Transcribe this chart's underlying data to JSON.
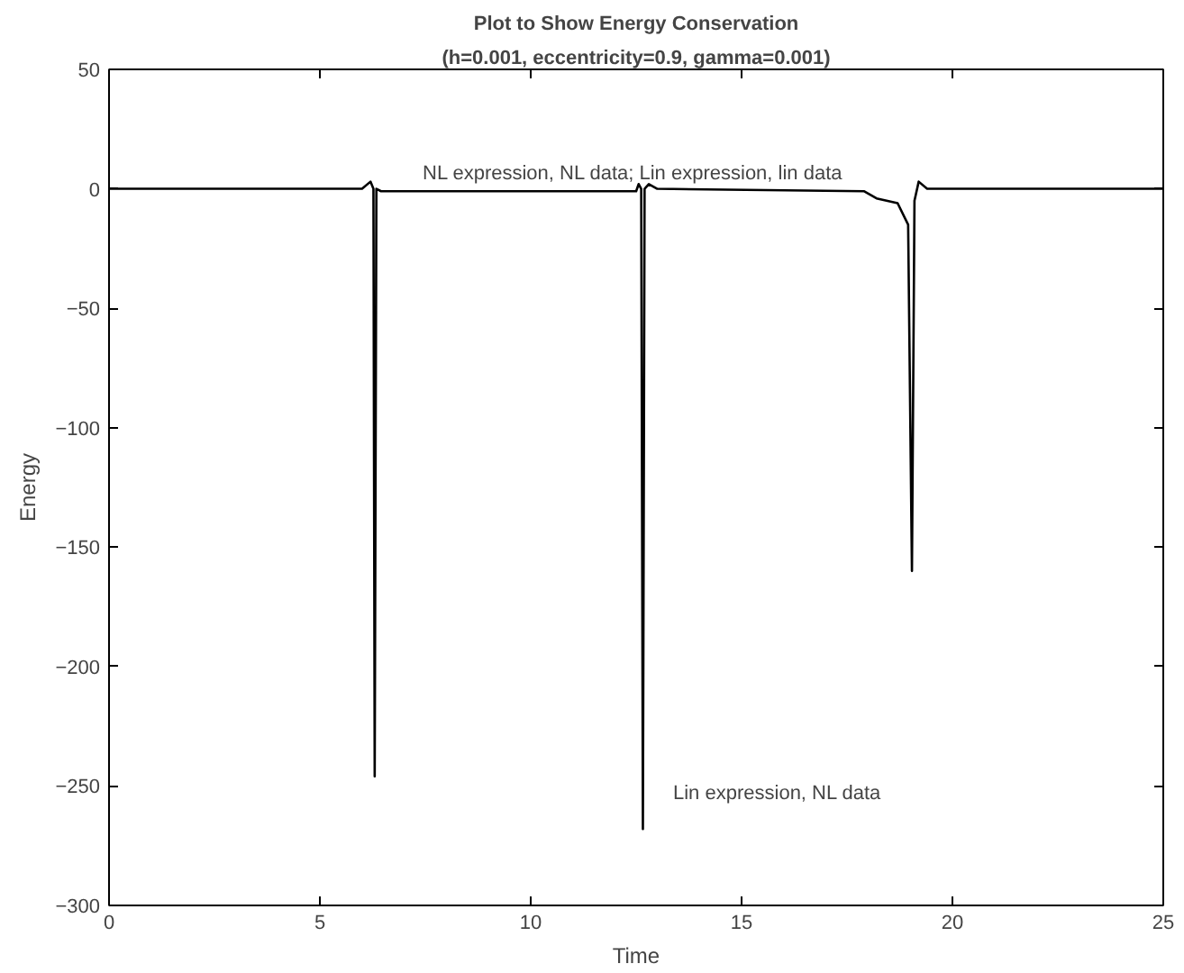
{
  "chart_data": {
    "type": "line",
    "title": "Plot to Show Energy Conservation",
    "subtitle": "(h=0.001, eccentricity=0.9, gamma=0.001)",
    "xlabel": "Time",
    "ylabel": "Energy",
    "xlim": [
      0,
      25
    ],
    "ylim": [
      -300,
      50
    ],
    "xticks": [
      0,
      5,
      10,
      15,
      20,
      25
    ],
    "yticks": [
      -300,
      -250,
      -200,
      -150,
      -100,
      -50,
      0,
      50
    ],
    "grid": false,
    "marker": "none",
    "line_style": "solid",
    "series": [
      {
        "color": "#000000",
        "x": [
          0,
          6.0,
          6.2,
          6.27,
          6.3,
          6.34,
          6.45,
          9,
          12.5,
          12.56,
          12.62,
          12.66,
          12.7,
          12.8,
          13.0,
          17.9,
          18.2,
          18.7,
          18.95,
          19.04,
          19.1,
          19.2,
          19.4,
          25
        ],
        "values": [
          0,
          0,
          3,
          0,
          -246,
          0,
          -1,
          -1,
          -1,
          2,
          0,
          -268,
          0,
          2,
          0,
          -1,
          -4,
          -6,
          -15,
          -160,
          -5,
          3,
          0,
          0
        ]
      }
    ],
    "annotations": [
      "NL expression, NL data;  Lin expression, lin data",
      "Lin expression, NL data"
    ]
  }
}
